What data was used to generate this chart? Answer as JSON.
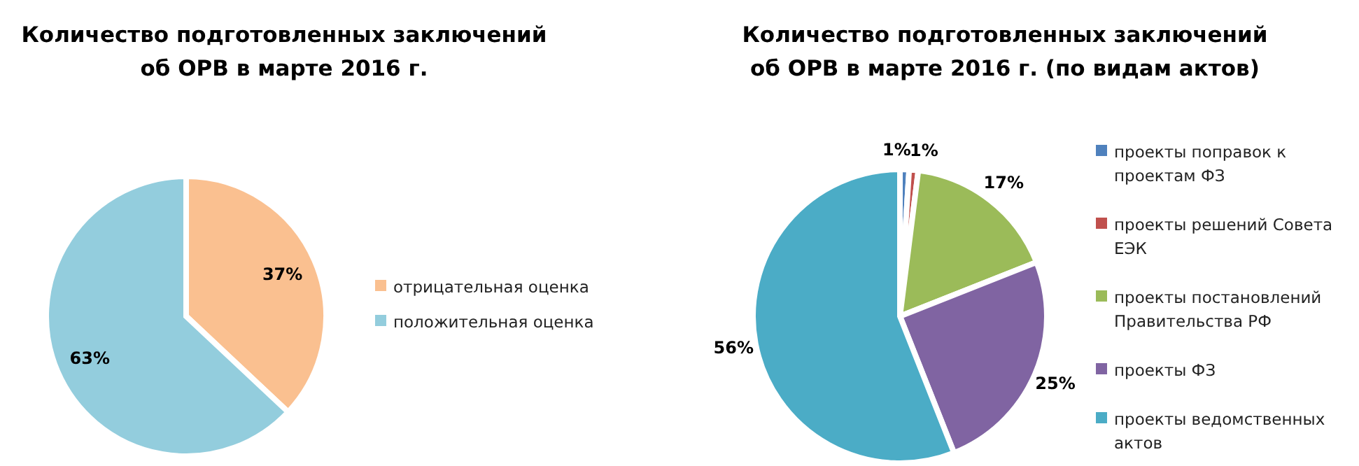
{
  "chart_data": [
    {
      "type": "pie",
      "title": "Количество подготовленных заключений\nоб ОРВ в марте 2016 г.",
      "categories": [
        "отрицательная оценка",
        "положительная оценка"
      ],
      "values": [
        37,
        63
      ],
      "value_labels": [
        "37%",
        "63%"
      ],
      "colors": [
        "#fac090",
        "#93cddd"
      ],
      "legend": "right"
    },
    {
      "type": "pie",
      "title": "Количество подготовленных заключений\nоб ОРВ в марте 2016 г. (по видам актов)",
      "categories": [
        "проекты поправок к проектам ФЗ",
        "проекты решений Совета ЕЭК",
        "проекты постановлений Правительства РФ",
        "проекты ФЗ",
        "проекты ведомственных актов"
      ],
      "values": [
        1,
        1,
        17,
        25,
        56
      ],
      "value_labels": [
        "1%",
        "1%",
        "17%",
        "25%",
        "56%"
      ],
      "colors": [
        "#4f81bd",
        "#c0504d",
        "#9bbb59",
        "#8064a2",
        "#4bacc6"
      ],
      "legend": "right"
    }
  ]
}
